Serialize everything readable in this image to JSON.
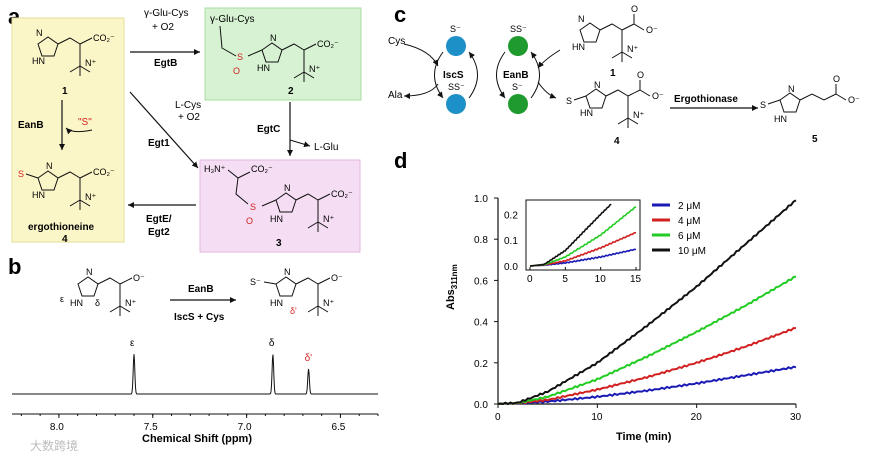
{
  "panels": {
    "a": "a",
    "b": "b",
    "c": "c",
    "d": "d"
  },
  "panel_a": {
    "compound_1_label": "1",
    "compound_2_label": "2",
    "compound_3_label": "3",
    "compound_4_label": "4",
    "ergothioneine_name": "ergothioneine",
    "egtb_reagents_line1": "γ-Glu-Cys",
    "egtb_reagents_line2": "+ O2",
    "egtb_enzyme": "EgtB",
    "egt1_reagents_line1": "L-Cys",
    "egt1_reagents_line2": "+ O2",
    "egt1_enzyme": "Egt1",
    "egtc_enzyme": "EgtC",
    "egtc_product": "L-Glu",
    "egte_enzyme_line1": "EgtE/",
    "egte_enzyme_line2": "Egt2",
    "eanb_enzyme": "EanB",
    "sulfur_source": "\"S\"",
    "compound2_group": "γ-Glu-Cys"
  },
  "panel_b": {
    "eanb_enzyme": "EanB",
    "iscs_reagents": "IscS + Cys",
    "proton_epsilon": "ε",
    "proton_delta": "δ",
    "proton_delta_prime": "δ'",
    "x_axis_title": "Chemical Shift (ppm)",
    "x_ticks": [
      "8.0",
      "7.5",
      "7.0",
      "6.5"
    ]
  },
  "panel_c": {
    "cys_label": "Cys",
    "ala_label": "Ala",
    "iscs_label": "IscS",
    "eanb_label": "EanB",
    "enzyme_name": "Ergothionase",
    "compound_1_label": "1",
    "compound_4_label": "4",
    "compound_5_label": "5",
    "iscs_top_state": "S⁻",
    "iscs_bottom_state": "SS⁻",
    "eanb_top_state": "SS⁻",
    "eanb_bottom_state": "S⁻",
    "colors": {
      "iscs": "#1e90c8",
      "eanb": "#1f9a2e"
    }
  },
  "nmr_peaks": [
    {
      "label": "ε",
      "ppm": 7.6,
      "height": 0.95
    },
    {
      "label": "δ",
      "ppm": 6.86,
      "height": 0.95
    },
    {
      "label": "δ'",
      "ppm": 6.67,
      "height": 0.6
    }
  ],
  "chart_data": {
    "type": "line",
    "title": "",
    "xlabel": "Time (min)",
    "ylabel": "Abs311nm",
    "ylabel_main": "Abs",
    "ylabel_sub": "311nm",
    "xlim": [
      0,
      30
    ],
    "ylim": [
      0,
      1.0
    ],
    "x_ticks": [
      "0",
      "10",
      "20",
      "30"
    ],
    "y_ticks": [
      "0.0",
      "0.2",
      "0.4",
      "0.6",
      "0.8",
      "1.0"
    ],
    "legend_position": "top-right",
    "series": [
      {
        "name": "2 μM",
        "color": "#1a1ab4",
        "x": [
          0,
          2,
          5,
          10,
          15,
          20,
          25,
          30
        ],
        "values": [
          0,
          0.003,
          0.012,
          0.035,
          0.065,
          0.1,
          0.14,
          0.18
        ]
      },
      {
        "name": "4 μM",
        "color": "#d22020",
        "x": [
          0,
          2,
          5,
          10,
          15,
          20,
          25,
          30
        ],
        "values": [
          0,
          0.004,
          0.02,
          0.07,
          0.13,
          0.2,
          0.28,
          0.37
        ]
      },
      {
        "name": "6 μM",
        "color": "#22cc22",
        "x": [
          0,
          2,
          5,
          10,
          15,
          20,
          25,
          30
        ],
        "values": [
          0,
          0.005,
          0.035,
          0.12,
          0.23,
          0.35,
          0.48,
          0.62
        ]
      },
      {
        "name": "10 μM",
        "color": "#111111",
        "x": [
          0,
          2,
          5,
          10,
          15,
          20,
          25,
          30
        ],
        "values": [
          0,
          0.006,
          0.06,
          0.2,
          0.38,
          0.57,
          0.78,
          0.99
        ]
      }
    ],
    "inset": {
      "xlim": [
        0,
        15
      ],
      "ylim": [
        0,
        0.24
      ],
      "x_ticks": [
        "0",
        "5",
        "10",
        "15"
      ],
      "y_ticks": [
        "0.0",
        "0.1",
        "0.2"
      ],
      "series": [
        {
          "name": "2 μM",
          "x": [
            0,
            2,
            5,
            10,
            15
          ],
          "values": [
            0,
            0.003,
            0.012,
            0.035,
            0.065
          ]
        },
        {
          "name": "4 μM",
          "x": [
            0,
            2,
            5,
            10,
            15
          ],
          "values": [
            0,
            0.004,
            0.02,
            0.07,
            0.13
          ]
        },
        {
          "name": "6 μM",
          "x": [
            0,
            2,
            5,
            10,
            15
          ],
          "values": [
            0,
            0.005,
            0.035,
            0.12,
            0.23
          ]
        },
        {
          "name": "10 μM",
          "x": [
            0,
            2,
            5,
            10,
            11.5
          ],
          "values": [
            0,
            0.006,
            0.06,
            0.2,
            0.24
          ]
        }
      ]
    }
  },
  "watermark": "大数跨境"
}
